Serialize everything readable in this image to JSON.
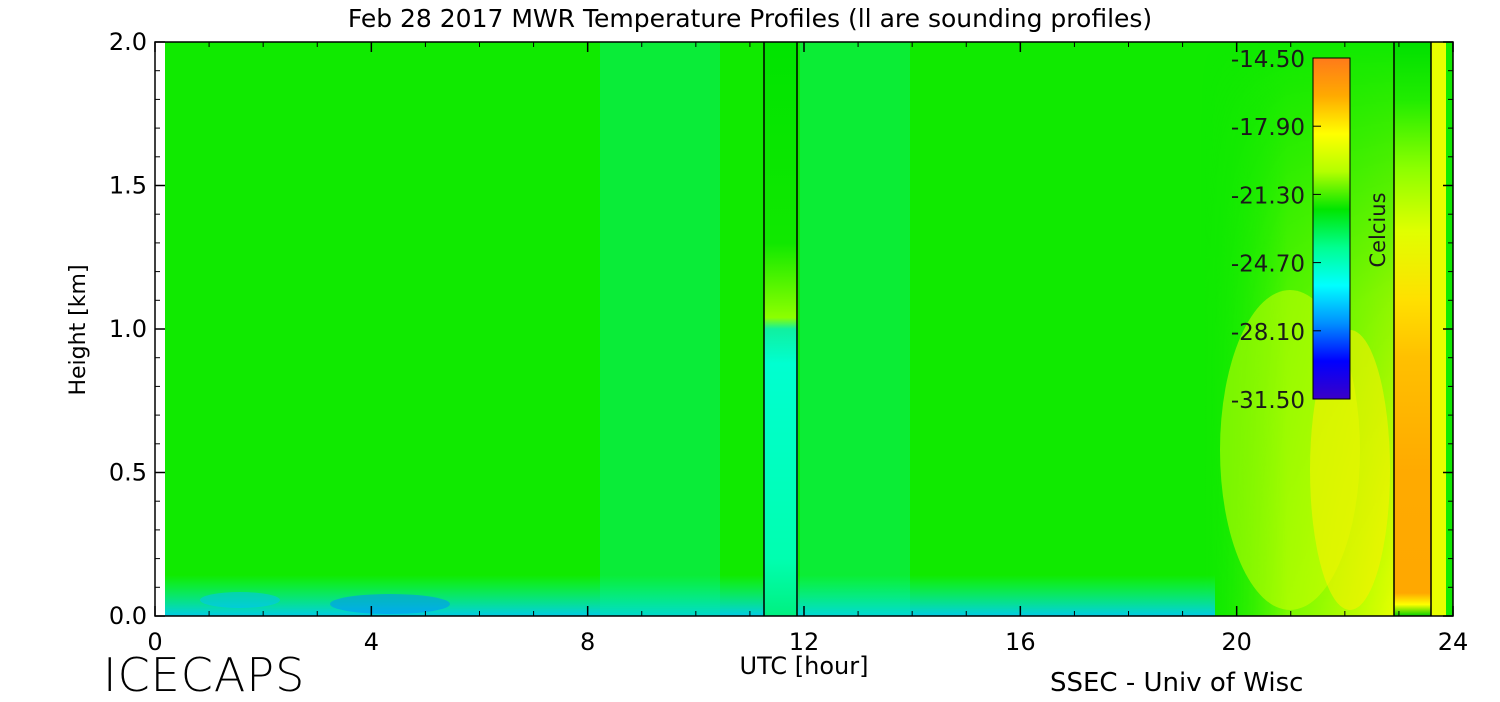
{
  "chart_data": {
    "type": "heatmap",
    "title": "Feb 28 2017 MWR Temperature Profiles (ll are sounding profiles)",
    "xlabel": "UTC [hour]",
    "ylabel": "Height [km]",
    "xlim": [
      0,
      24
    ],
    "ylim": [
      0,
      2
    ],
    "xticks": [
      "0",
      "4",
      "8",
      "12",
      "16",
      "20",
      "24"
    ],
    "yticks": [
      "0.0",
      "0.5",
      "1.0",
      "1.5",
      "2.0"
    ],
    "colorbar": {
      "label": "Celcius",
      "ticks": [
        "-14.50",
        "-17.90",
        "-21.30",
        "-24.70",
        "-28.10",
        "-31.50"
      ],
      "range": [
        -31.5,
        -14.5
      ],
      "colors": [
        "#3a00c8",
        "#0000ff",
        "#0090ff",
        "#00ffff",
        "#00ff90",
        "#00e600",
        "#b4ff00",
        "#ffff00",
        "#ffaa00",
        "#ff7a1a"
      ]
    },
    "sounding_profiles": [
      {
        "start_hour": 11.3,
        "end_hour": 11.85
      },
      {
        "start_hour": 22.9,
        "end_hour": 23.55
      }
    ],
    "field_description": "Mostly green (~ -22 C) with cyan near surface (~ -25 C); warming to yellow/orange (~ -17 to -16 C) after 21 UTC"
  },
  "footer": {
    "logo": "ICECAPS",
    "credit": "SSEC - Univ of Wisc"
  }
}
